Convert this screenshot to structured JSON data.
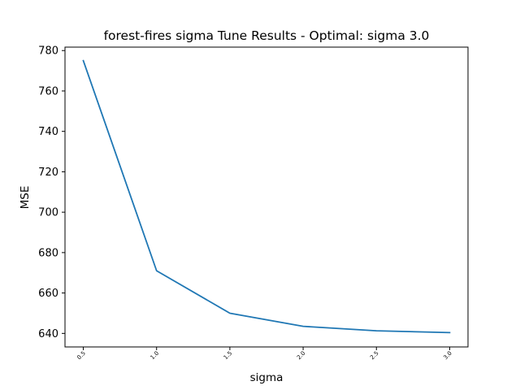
{
  "chart_data": {
    "type": "line",
    "title": "forest-fires sigma Tune Results - Optimal: sigma 3.0",
    "xlabel": "sigma",
    "ylabel": "MSE",
    "x": [
      0.5,
      1.0,
      1.5,
      2.0,
      2.5,
      3.0
    ],
    "series": [
      {
        "values": [
          775,
          671,
          650,
          643.5,
          641.3,
          640.4
        ]
      }
    ],
    "x_ticks": [
      "0.5",
      "1.0",
      "1.5",
      "2.0",
      "2.5",
      "3.0"
    ],
    "y_ticks": [
      "640",
      "660",
      "680",
      "700",
      "720",
      "740",
      "760",
      "780"
    ],
    "xlim": [
      0.375,
      3.125
    ],
    "ylim": [
      633.3,
      781.7
    ],
    "grid": false,
    "line_color": "#1f77b4"
  }
}
